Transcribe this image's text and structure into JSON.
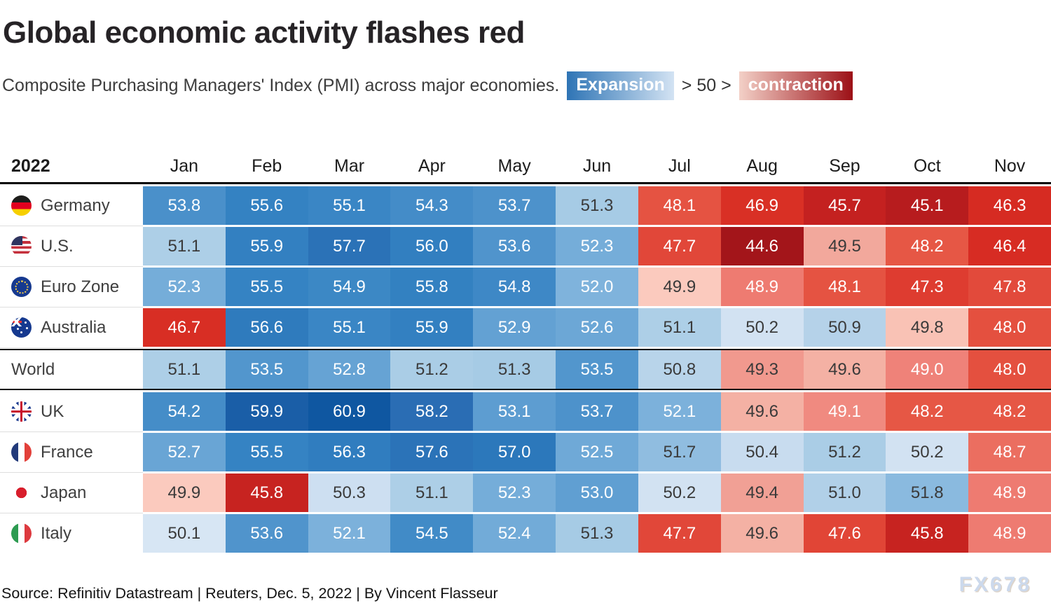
{
  "header": {
    "title": "Global economic activity flashes red",
    "subtitle": "Composite Purchasing Managers' Index (PMI) across major economies.",
    "legend": {
      "expansion_label": "Expansion",
      "threshold_label": "> 50 >",
      "contraction_label": "contraction",
      "expansion_gradient": [
        "#2e74b5",
        "#d3e3f3"
      ],
      "contraction_gradient": [
        "#f3d0c7",
        "#9c1016"
      ]
    }
  },
  "chart_data": {
    "type": "heatmap",
    "title": "Global economic activity flashes red",
    "subtitle": "Composite Purchasing Managers' Index (PMI) across major economies.",
    "year_label": "2022",
    "columns": [
      "Jan",
      "Feb",
      "Mar",
      "Apr",
      "May",
      "Jun",
      "Jul",
      "Aug",
      "Sep",
      "Oct",
      "Nov"
    ],
    "rows": [
      {
        "label": "Germany",
        "flag": "germany",
        "emphasized": false,
        "values": [
          53.8,
          55.6,
          55.1,
          54.3,
          53.7,
          51.3,
          48.1,
          46.9,
          45.7,
          45.1,
          46.3
        ]
      },
      {
        "label": "U.S.",
        "flag": "us",
        "emphasized": false,
        "values": [
          51.1,
          55.9,
          57.7,
          56.0,
          53.6,
          52.3,
          47.7,
          44.6,
          49.5,
          48.2,
          46.4
        ]
      },
      {
        "label": "Euro Zone",
        "flag": "eurozone",
        "emphasized": false,
        "values": [
          52.3,
          55.5,
          54.9,
          55.8,
          54.8,
          52.0,
          49.9,
          48.9,
          48.1,
          47.3,
          47.8
        ]
      },
      {
        "label": "Australia",
        "flag": "australia",
        "emphasized": false,
        "values": [
          46.7,
          56.6,
          55.1,
          55.9,
          52.9,
          52.6,
          51.1,
          50.2,
          50.9,
          49.8,
          48.0
        ]
      },
      {
        "label": "World",
        "flag": null,
        "emphasized": true,
        "values": [
          51.1,
          53.5,
          52.8,
          51.2,
          51.3,
          53.5,
          50.8,
          49.3,
          49.6,
          49.0,
          48.0
        ]
      },
      {
        "label": "UK",
        "flag": "uk",
        "emphasized": false,
        "values": [
          54.2,
          59.9,
          60.9,
          58.2,
          53.1,
          53.7,
          52.1,
          49.6,
          49.1,
          48.2,
          48.2
        ]
      },
      {
        "label": "France",
        "flag": "france",
        "emphasized": false,
        "values": [
          52.7,
          55.5,
          56.3,
          57.6,
          57.0,
          52.5,
          51.7,
          50.4,
          51.2,
          50.2,
          48.7
        ]
      },
      {
        "label": "Japan",
        "flag": "japan",
        "emphasized": false,
        "values": [
          49.9,
          45.8,
          50.3,
          51.1,
          52.3,
          53.0,
          50.2,
          49.4,
          51.0,
          51.8,
          48.9
        ]
      },
      {
        "label": "Italy",
        "flag": "italy",
        "emphasized": false,
        "values": [
          50.1,
          53.6,
          52.1,
          54.5,
          52.4,
          51.3,
          47.7,
          49.6,
          47.6,
          45.8,
          48.9
        ]
      }
    ],
    "color_scale": {
      "blue_stops": [
        [
          50.0,
          "#dce9f6"
        ],
        [
          50.45,
          "#c5daee"
        ],
        [
          51.3,
          "#a6cbe5"
        ],
        [
          52.0,
          "#7fb3dc"
        ],
        [
          52.75,
          "#67a4d5"
        ],
        [
          53.8,
          "#4a90ca"
        ],
        [
          55.5,
          "#3583c3"
        ],
        [
          57.2,
          "#2b77ba"
        ],
        [
          58.2,
          "#2a6db4"
        ],
        [
          59.9,
          "#1a5ea7"
        ],
        [
          61.0,
          "#0e56a0"
        ]
      ],
      "red_stops": [
        [
          44.6,
          "#a3151a"
        ],
        [
          45.1,
          "#b71c1e"
        ],
        [
          45.7,
          "#c42120"
        ],
        [
          46.3,
          "#d62b22"
        ],
        [
          46.9,
          "#d93025"
        ],
        [
          47.3,
          "#de3c30"
        ],
        [
          48.0,
          "#e4503f"
        ],
        [
          48.5,
          "#e9614f"
        ],
        [
          49.0,
          "#ef8279"
        ],
        [
          49.5,
          "#f2a89c"
        ],
        [
          50.0,
          "#fdd3c6"
        ]
      ],
      "blue_light_text_min": 52.0,
      "red_dark_text_min": 49.3,
      "dark_text": "#3a3a3a",
      "light_text": "#ffffff"
    },
    "legend_note": "Expansion > 50 > contraction"
  },
  "footer": {
    "source": "Source: Refinitiv Datastream | Reuters, Dec. 5, 2022 | By Vincent Flasseur",
    "watermark": "FX678"
  }
}
